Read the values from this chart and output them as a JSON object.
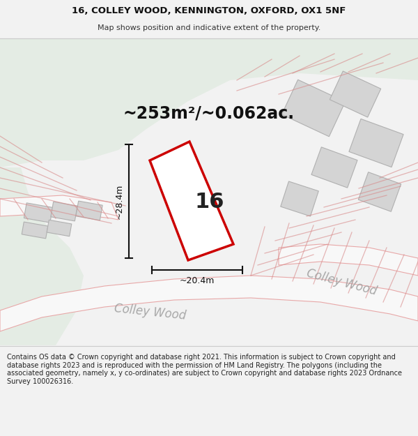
{
  "title_line1": "16, COLLEY WOOD, KENNINGTON, OXFORD, OX1 5NF",
  "title_line2": "Map shows position and indicative extent of the property.",
  "area_text": "~253m²/~0.062ac.",
  "label_16": "16",
  "dim_height": "~28.4m",
  "dim_width": "~20.4m",
  "road_label1": "Colley Wood",
  "road_label2": "Colley Wood",
  "footer_text": "Contains OS data © Crown copyright and database right 2021. This information is subject to Crown copyright and database rights 2023 and is reproduced with the permission of HM Land Registry. The polygons (including the associated geometry, namely x, y co-ordinates) are subject to Crown copyright and database rights 2023 Ordnance Survey 100026316.",
  "bg_color": "#f2f2f2",
  "map_bg": "#ededeb",
  "green_area_color": "#e4ece4",
  "road_color": "#f8f8f8",
  "building_color": "#d4d4d4",
  "plot_outline_color": "#cc0000",
  "plot_fill_color": "#ffffff",
  "road_line_color": "#e8a8a8",
  "dim_line_color": "#111111",
  "header_bg": "#ffffff",
  "footer_bg": "#ffffff",
  "title_fontsize": 9.5,
  "subtitle_fontsize": 8.0,
  "area_fontsize": 17,
  "label16_fontsize": 22,
  "dim_fontsize": 9,
  "road_fontsize": 12,
  "footer_fontsize": 7
}
